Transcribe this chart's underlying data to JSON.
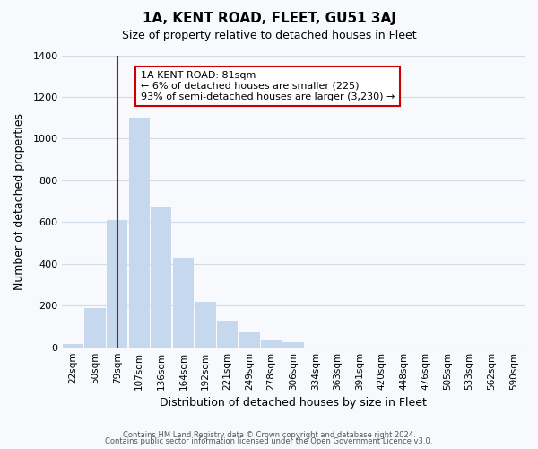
{
  "title": "1A, KENT ROAD, FLEET, GU51 3AJ",
  "subtitle": "Size of property relative to detached houses in Fleet",
  "xlabel": "Distribution of detached houses by size in Fleet",
  "ylabel": "Number of detached properties",
  "bar_color": "#c5d8ed",
  "vline_color": "#cc0000",
  "vline_x": 2,
  "bin_labels": [
    "22sqm",
    "50sqm",
    "79sqm",
    "107sqm",
    "136sqm",
    "164sqm",
    "192sqm",
    "221sqm",
    "249sqm",
    "278sqm",
    "306sqm",
    "334sqm",
    "363sqm",
    "391sqm",
    "420sqm",
    "448sqm",
    "476sqm",
    "505sqm",
    "533sqm",
    "562sqm",
    "590sqm"
  ],
  "bar_heights": [
    15,
    190,
    610,
    1100,
    670,
    430,
    220,
    125,
    70,
    35,
    25,
    0,
    0,
    0,
    0,
    0,
    0,
    0,
    0,
    0,
    0
  ],
  "ylim": [
    0,
    1400
  ],
  "yticks": [
    0,
    200,
    400,
    600,
    800,
    1000,
    1200,
    1400
  ],
  "annotation_title": "1A KENT ROAD: 81sqm",
  "annotation_line1": "← 6% of detached houses are smaller (225)",
  "annotation_line2": "93% of semi-detached houses are larger (3,230) →",
  "footnote1": "Contains HM Land Registry data © Crown copyright and database right 2024.",
  "footnote2": "Contains public sector information licensed under the Open Government Licence v3.0.",
  "background_color": "#f7f9fc",
  "grid_color": "#d0dce8",
  "annotation_box_color": "#ffffff",
  "annotation_box_edge": "#cc0000"
}
